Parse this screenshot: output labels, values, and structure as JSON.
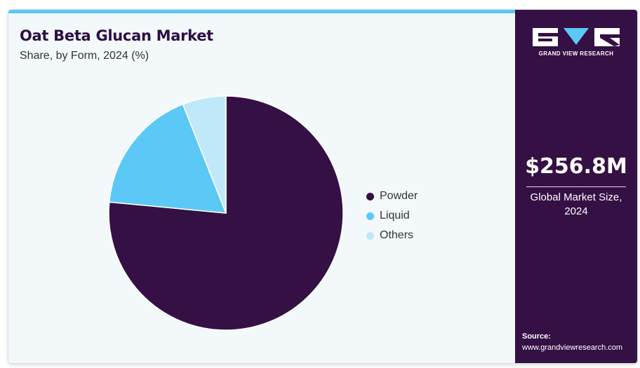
{
  "header": {
    "title": "Oat Beta Glucan Market",
    "subtitle": "Share, by Form, 2024 (%)"
  },
  "colors": {
    "accent_bar": "#5bc8f5",
    "side_panel": "#351044",
    "powder": "#351044",
    "liquid": "#5bc8f5",
    "others": "#bfe9f9"
  },
  "chart_data": {
    "type": "pie",
    "title": "Oat Beta Glucan Market",
    "subtitle": "Share, by Form, 2024 (%)",
    "start_angle_deg": 0,
    "direction": "clockwise",
    "legend_position": "right",
    "slices": [
      {
        "label": "Powder",
        "value": 76.5,
        "color": "#351044"
      },
      {
        "label": "Liquid",
        "value": 17.5,
        "color": "#5bc8f5"
      },
      {
        "label": "Others",
        "value": 6.0,
        "color": "#bfe9f9"
      }
    ]
  },
  "side_panel": {
    "logo_text": "GRAND VIEW RESEARCH",
    "market_size": "$256.8M",
    "market_caption_line1": "Global Market Size,",
    "market_caption_line2": "2024",
    "source_label": "Source:",
    "source_url": "www.grandviewresearch.com"
  }
}
